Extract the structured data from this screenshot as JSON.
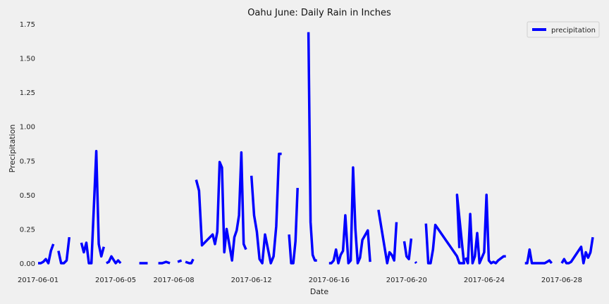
{
  "chart_data": {
    "type": "line",
    "title": "Oahu June: Daily Rain in Inches",
    "xlabel": "Date",
    "ylabel": "Precipitation",
    "xlim": [
      "2017-06-01",
      "2017-06-30"
    ],
    "ylim": [
      0,
      1.75
    ],
    "yticks": [
      0.0,
      0.25,
      0.5,
      0.75,
      1.0,
      1.25,
      1.5,
      1.75
    ],
    "yticks_labels": [
      "0.00",
      "0.25",
      "0.50",
      "0.75",
      "1.00",
      "1.25",
      "1.50",
      "1.75"
    ],
    "xticks": [
      "2017-06-01",
      "2017-06-05",
      "2017-06-08",
      "2017-06-12",
      "2017-06-16",
      "2017-06-20",
      "2017-06-24",
      "2017-06-28"
    ],
    "grid": false,
    "legend_position": "top-right",
    "series": [
      {
        "name": "precipitation",
        "color": "#0000ff",
        "x": [
          "2017-06-01",
          "2017-06-01",
          "2017-06-01",
          "2017-06-01",
          "2017-06-01",
          "2017-06-01",
          "2017-06-01",
          null,
          "2017-06-02",
          "2017-06-02",
          "2017-06-02",
          "2017-06-02",
          "2017-06-02",
          null,
          "2017-06-03",
          "2017-06-03",
          "2017-06-03",
          "2017-06-03",
          "2017-06-03",
          "2017-06-04",
          "2017-06-04",
          "2017-06-04",
          "2017-06-04",
          null,
          "2017-06-04",
          "2017-06-04",
          "2017-06-04",
          "2017-06-05",
          "2017-06-05",
          "2017-06-05",
          null,
          "2017-06-06",
          "2017-06-06",
          null,
          "2017-06-07",
          "2017-06-07",
          "2017-06-07",
          "2017-06-07",
          null,
          "2017-06-08",
          "2017-06-08",
          null,
          "2017-06-08",
          "2017-06-08",
          "2017-06-08",
          "2017-06-09",
          null,
          "2017-06-09",
          "2017-06-09",
          "2017-06-09",
          "2017-06-10",
          "2017-06-10",
          "2017-06-10",
          "2017-06-10",
          "2017-06-10",
          "2017-06-10",
          "2017-06-10",
          "2017-06-11",
          "2017-06-11",
          "2017-06-11",
          "2017-06-11",
          "2017-06-11",
          "2017-06-11",
          "2017-06-11",
          null,
          "2017-06-12",
          "2017-06-12",
          "2017-06-12",
          "2017-06-12",
          "2017-06-12",
          "2017-06-12",
          "2017-06-13",
          "2017-06-13",
          "2017-06-13",
          "2017-06-13",
          "2017-06-13",
          null,
          "2017-06-13",
          "2017-06-14",
          "2017-06-14",
          "2017-06-14",
          "2017-06-14",
          null,
          "2017-06-14",
          "2017-06-15",
          "2017-06-15",
          "2017-06-15",
          "2017-06-15",
          null,
          "2017-06-16",
          "2017-06-16",
          "2017-06-16",
          "2017-06-16",
          "2017-06-16",
          "2017-06-16",
          "2017-06-16",
          "2017-06-16",
          "2017-06-17",
          "2017-06-17",
          "2017-06-17",
          "2017-06-17",
          "2017-06-17",
          "2017-06-17",
          "2017-06-17",
          "2017-06-18",
          "2017-06-18",
          null,
          "2017-06-18",
          "2017-06-19",
          "2017-06-19",
          "2017-06-19",
          "2017-06-19",
          "2017-06-19",
          null,
          "2017-06-19",
          "2017-06-20",
          "2017-06-20",
          "2017-06-20",
          null,
          "2017-06-20",
          "2017-06-20",
          null,
          "2017-06-21",
          "2017-06-21",
          "2017-06-21",
          "2017-06-21",
          "2017-06-21",
          "2017-06-22",
          "2017-06-22",
          "2017-06-22",
          "2017-06-22",
          "2017-06-22",
          "2017-06-22",
          null,
          "2017-06-23",
          "2017-06-23",
          "2017-06-23",
          "2017-06-23",
          "2017-06-23",
          "2017-06-23",
          "2017-06-23",
          "2017-06-24",
          "2017-06-24",
          "2017-06-24",
          "2017-06-24",
          "2017-06-24",
          "2017-06-24",
          "2017-06-24",
          "2017-06-25",
          "2017-06-25",
          null,
          "2017-06-26",
          "2017-06-26",
          "2017-06-26",
          "2017-06-26",
          "2017-06-26",
          "2017-06-27",
          "2017-06-27",
          "2017-06-27",
          "2017-06-27",
          "2017-06-27",
          null,
          "2017-06-28",
          "2017-06-28",
          "2017-06-28",
          "2017-06-28",
          "2017-06-28",
          "2017-06-29",
          "2017-06-29",
          "2017-06-29",
          "2017-06-29",
          "2017-06-29",
          "2017-06-29"
        ],
        "x_offsets": [
          0.0,
          0.14,
          0.27,
          0.4,
          0.53,
          0.66,
          0.79,
          null,
          0.05,
          0.19,
          0.33,
          0.47,
          0.61,
          null,
          0.23,
          0.36,
          0.49,
          0.62,
          0.75,
          0.0,
          0.13,
          0.26,
          0.39,
          null,
          0.52,
          0.65,
          0.78,
          0.0,
          0.13,
          0.26,
          null,
          0.22,
          0.65,
          null,
          0.2,
          0.4,
          0.6,
          0.8,
          null,
          0.2,
          0.4,
          null,
          0.6,
          0.8,
          0.9,
          0.0,
          null,
          0.15,
          0.3,
          0.45,
          0.0,
          0.12,
          0.24,
          0.36,
          0.48,
          0.6,
          0.72,
          0.0,
          0.12,
          0.24,
          0.36,
          0.48,
          0.6,
          0.72,
          null,
          0.0,
          0.14,
          0.28,
          0.42,
          0.56,
          0.7,
          0.0,
          0.14,
          0.28,
          0.42,
          0.56,
          null,
          0.94,
          0.05,
          0.16,
          0.27,
          0.38,
          null,
          0.94,
          0.05,
          0.16,
          0.27,
          0.38,
          null,
          0.0,
          0.12,
          0.24,
          0.36,
          0.48,
          0.6,
          0.72,
          0.84,
          0.0,
          0.12,
          0.24,
          0.36,
          0.48,
          0.6,
          0.72,
          0.0,
          0.12,
          null,
          0.55,
          0.0,
          0.12,
          0.24,
          0.36,
          0.48,
          null,
          0.88,
          0.0,
          0.12,
          0.24,
          null,
          0.45,
          0.5,
          null,
          0.0,
          0.12,
          0.24,
          0.36,
          0.48,
          0.6,
          0.72,
          0.84,
          0.96,
          0.6,
          0.72,
          null,
          0.04,
          0.16,
          0.28,
          0.4,
          0.52,
          0.64,
          0.76,
          0.0,
          0.12,
          0.24,
          0.36,
          0.48,
          0.6,
          0.72,
          0.0,
          0.12,
          null,
          0.1,
          0.22,
          0.34,
          0.46,
          0.58,
          0.0,
          0.12,
          0.24,
          0.36,
          0.48,
          null,
          0.0,
          0.12,
          0.24,
          0.36,
          0.48,
          0.0,
          0.12,
          0.24,
          0.36,
          0.48,
          0.6
        ],
        "y": [
          0.0,
          0.0,
          0.01,
          0.03,
          0.0,
          0.09,
          0.14,
          null,
          0.09,
          0.0,
          0.0,
          0.02,
          0.19,
          null,
          0.15,
          0.08,
          0.15,
          0.0,
          0.0,
          0.82,
          0.14,
          0.05,
          0.12,
          null,
          0.0,
          0.01,
          0.05,
          0.0,
          0.02,
          0.0,
          null,
          0.0,
          0.0,
          null,
          0.0,
          0.0,
          0.01,
          0.0,
          null,
          0.01,
          0.02,
          null,
          0.01,
          0.0,
          0.0,
          0.03,
          null,
          0.61,
          0.53,
          0.13,
          0.21,
          0.14,
          0.23,
          0.74,
          0.7,
          0.08,
          0.25,
          0.02,
          0.19,
          0.24,
          0.35,
          0.81,
          0.14,
          0.1,
          null,
          0.64,
          0.35,
          0.23,
          0.03,
          0.0,
          0.21,
          0.0,
          0.05,
          0.27,
          0.8,
          0.8,
          null,
          0.21,
          0.0,
          0.0,
          0.16,
          0.55,
          null,
          1.69,
          0.3,
          0.06,
          0.02,
          0.02,
          null,
          0.0,
          0.0,
          0.02,
          0.1,
          0.0,
          0.06,
          0.09,
          0.35,
          0.0,
          0.02,
          0.7,
          0.25,
          0.0,
          0.04,
          0.17,
          0.24,
          0.01,
          null,
          0.39,
          0.0,
          0.08,
          0.06,
          0.02,
          0.3,
          null,
          0.16,
          0.05,
          0.03,
          0.18,
          null,
          0.01,
          0.0,
          null,
          0.29,
          0.0,
          0.0,
          0.1,
          0.28,
          0.05,
          0.0,
          0.0,
          0.0,
          0.5,
          0.11,
          null,
          0.04,
          0.0,
          0.36,
          0.0,
          0.05,
          0.22,
          0.0,
          0.08,
          0.5,
          0.02,
          0.0,
          0.01,
          0.0,
          0.02,
          0.05,
          0.05,
          null,
          0.0,
          0.0,
          0.1,
          0.0,
          0.0,
          0.0,
          0.0,
          0.01,
          0.02,
          0.0,
          null,
          0.0,
          0.03,
          0.0,
          0.0,
          0.01,
          0.12,
          0.0,
          0.08,
          0.04,
          0.08,
          0.19
        ]
      }
    ]
  }
}
